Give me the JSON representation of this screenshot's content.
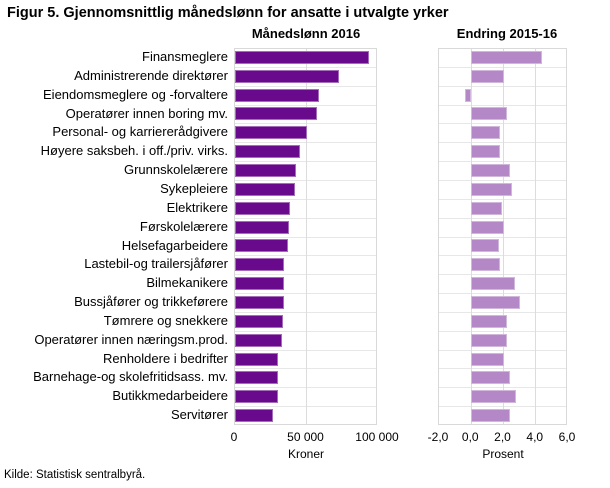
{
  "title": "Figur 5. Gjennomsnittlig månedslønn for ansatte i utvalgte yrker",
  "source": "Kilde: Statistisk sentralbyrå.",
  "panels": [
    {
      "title": "Månedslønn 2016",
      "xlabel": "Kroner",
      "ticks": [
        "0",
        "50 000",
        "100 000"
      ]
    },
    {
      "title": "Endring 2015-16",
      "xlabel": "Prosent",
      "ticks": [
        "-2,0",
        "0,0",
        "2,0",
        "4,0",
        "6,0"
      ]
    }
  ],
  "colors": {
    "salary_bar": "#690a8c",
    "change_bar": "#b487c6",
    "grid": "#dcdcdc"
  },
  "chart_data": {
    "type": "bar",
    "orientation": "horizontal",
    "title": "Figur 5. Gjennomsnittlig månedslønn for ansatte i utvalgte yrker",
    "grid": true,
    "legend": false,
    "categories": [
      "Finansmeglere",
      "Administrerende direktører",
      "Eiendomsmeglere og -forvaltere",
      "Operatører innen boring mv.",
      "Personal- og karriererådgivere",
      "Høyere saksbeh. i off./priv. virks.",
      "Grunnskolelærere",
      "Sykepleiere",
      "Elektrikere",
      "Førskolelærere",
      "Helsefagarbeidere",
      "Lastebil-og trailersjåfører",
      "Bilmekanikere",
      "Bussjåfører og trikkeførere",
      "Tømrere og snekkere",
      "Operatører innen næringsm.prod.",
      "Renholdere i bedrifter",
      "Barnehage-og skolefritidsass. mv.",
      "Butikkmedarbeidere",
      "Servitører"
    ],
    "series": [
      {
        "name": "Månedslønn 2016",
        "unit": "Kroner",
        "xlim": [
          0,
          100000
        ],
        "tick_values": [
          0,
          50000,
          100000
        ],
        "values": [
          94000,
          73000,
          59000,
          57000,
          50500,
          45500,
          43000,
          42000,
          38500,
          37500,
          37000,
          34000,
          34000,
          34000,
          33500,
          33000,
          30000,
          30000,
          30000,
          26500
        ]
      },
      {
        "name": "Endring 2015-16",
        "unit": "Prosent",
        "xlim": [
          -2.0,
          6.0
        ],
        "tick_values": [
          -2.0,
          0.0,
          2.0,
          4.0,
          6.0
        ],
        "values": [
          4.4,
          2.0,
          -0.4,
          2.2,
          1.8,
          1.8,
          2.4,
          2.5,
          1.9,
          2.0,
          1.7,
          1.8,
          2.7,
          3.0,
          2.2,
          2.2,
          2.0,
          2.4,
          2.8,
          2.4
        ]
      }
    ]
  }
}
